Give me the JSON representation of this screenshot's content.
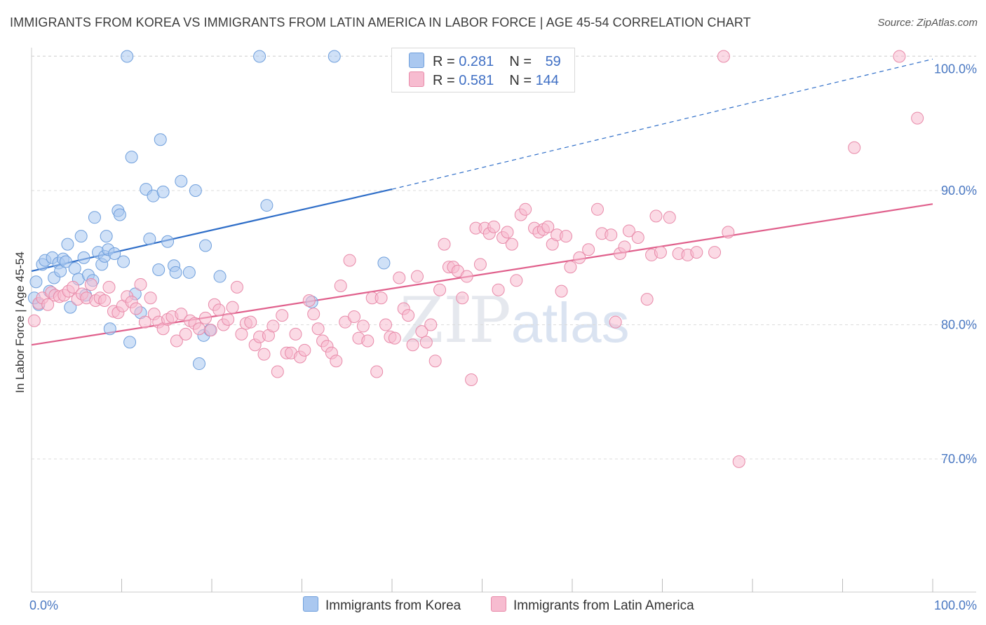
{
  "header": {
    "title": "IMMIGRANTS FROM KOREA VS IMMIGRANTS FROM LATIN AMERICA IN LABOR FORCE | AGE 45-54 CORRELATION CHART",
    "source": "Source: ZipAtlas.com"
  },
  "watermark": {
    "zip": "ZIP",
    "atlas": "atlas"
  },
  "legend": {
    "rows": [
      {
        "r_label": "R = ",
        "r_value": "0.281",
        "n_label": "N = ",
        "n_value": "59",
        "color": "#aac8f0"
      },
      {
        "r_label": "R = ",
        "r_value": "0.581",
        "n_label": "N = ",
        "n_value": "144",
        "color": "#f7bcd0"
      }
    ]
  },
  "bottom_legend": [
    {
      "label": "Immigrants from Korea",
      "color": "#aac8f0"
    },
    {
      "label": "Immigrants from Latin America",
      "color": "#f7bcd0"
    }
  ],
  "chart_data": {
    "type": "scatter",
    "title": "IMMIGRANTS FROM KOREA VS IMMIGRANTS FROM LATIN AMERICA IN LABOR FORCE | AGE 45-54 CORRELATION CHART",
    "xlabel": "",
    "ylabel": "In Labor Force | Age 45-54",
    "xlim": [
      0,
      100
    ],
    "ylim": [
      60,
      101.5
    ],
    "y_ticks": [
      {
        "value": 70,
        "label": "70.0%"
      },
      {
        "value": 80,
        "label": "80.0%"
      },
      {
        "value": 90,
        "label": "90.0%"
      },
      {
        "value": 100,
        "label": "100.0%"
      }
    ],
    "x_tick_labels": [
      {
        "value": 0,
        "label": "0.0%"
      },
      {
        "value": 100,
        "label": "100.0%"
      }
    ],
    "x_minor_ticks": [
      10,
      20,
      30,
      40,
      50,
      60,
      70,
      80,
      90,
      100
    ],
    "grid": true,
    "legend_position": "top-center",
    "series": [
      {
        "name": "Immigrants from Korea",
        "color": "#6f9fdc",
        "fill": "#aac8f0",
        "trend": {
          "x0": 0,
          "y0": 84.0,
          "x1": 40,
          "y1": 90.1,
          "dashed_to_x": 100,
          "dashed_to_y": 99.8,
          "color": "#2f6ec8"
        },
        "points": [
          [
            0.5,
            83.2
          ],
          [
            0.8,
            81.5
          ],
          [
            1.2,
            84.5
          ],
          [
            1.5,
            84.8
          ],
          [
            2.0,
            82.5
          ],
          [
            2.3,
            85.0
          ],
          [
            2.5,
            83.5
          ],
          [
            3.0,
            84.6
          ],
          [
            3.2,
            84.0
          ],
          [
            3.5,
            84.9
          ],
          [
            3.8,
            84.7
          ],
          [
            4.0,
            86.0
          ],
          [
            4.3,
            81.3
          ],
          [
            4.8,
            84.2
          ],
          [
            5.2,
            83.4
          ],
          [
            5.5,
            86.6
          ],
          [
            5.8,
            85.0
          ],
          [
            6.0,
            82.2
          ],
          [
            6.3,
            83.7
          ],
          [
            6.8,
            83.3
          ],
          [
            7.0,
            88.0
          ],
          [
            7.4,
            85.4
          ],
          [
            7.8,
            84.5
          ],
          [
            8.1,
            85.1
          ],
          [
            8.3,
            86.6
          ],
          [
            8.5,
            85.6
          ],
          [
            8.7,
            79.7
          ],
          [
            9.2,
            85.3
          ],
          [
            9.6,
            88.5
          ],
          [
            9.8,
            88.2
          ],
          [
            10.2,
            84.7
          ],
          [
            10.6,
            100.0
          ],
          [
            10.9,
            78.7
          ],
          [
            11.1,
            92.5
          ],
          [
            11.5,
            82.3
          ],
          [
            12.1,
            80.9
          ],
          [
            12.7,
            90.1
          ],
          [
            13.1,
            86.4
          ],
          [
            13.5,
            89.6
          ],
          [
            14.1,
            84.1
          ],
          [
            14.3,
            93.8
          ],
          [
            14.6,
            89.9
          ],
          [
            15.1,
            86.2
          ],
          [
            15.8,
            84.4
          ],
          [
            16.0,
            83.9
          ],
          [
            16.6,
            90.7
          ],
          [
            17.5,
            83.9
          ],
          [
            18.2,
            90.0
          ],
          [
            18.6,
            77.1
          ],
          [
            19.1,
            79.2
          ],
          [
            19.3,
            85.9
          ],
          [
            19.8,
            79.6
          ],
          [
            20.9,
            83.6
          ],
          [
            25.3,
            100.0
          ],
          [
            26.1,
            88.9
          ],
          [
            31.1,
            81.7
          ],
          [
            33.6,
            100.0
          ],
          [
            39.1,
            84.6
          ],
          [
            0.3,
            82.0
          ]
        ]
      },
      {
        "name": "Immigrants from Latin America",
        "color": "#e88aa9",
        "fill": "#f7bcd0",
        "trend": {
          "x0": 0,
          "y0": 78.5,
          "x1": 100,
          "y1": 89.0,
          "color": "#e0608c"
        },
        "points": [
          [
            0.3,
            80.3
          ],
          [
            0.8,
            81.6
          ],
          [
            1.2,
            82.0
          ],
          [
            1.8,
            81.5
          ],
          [
            2.2,
            82.4
          ],
          [
            2.6,
            82.2
          ],
          [
            3.1,
            82.1
          ],
          [
            3.6,
            82.2
          ],
          [
            4.1,
            82.5
          ],
          [
            4.6,
            82.8
          ],
          [
            5.1,
            81.9
          ],
          [
            5.6,
            82.3
          ],
          [
            6.1,
            82.0
          ],
          [
            6.6,
            83.0
          ],
          [
            7.1,
            81.8
          ],
          [
            7.6,
            82.0
          ],
          [
            8.1,
            81.8
          ],
          [
            8.6,
            82.8
          ],
          [
            9.1,
            81.0
          ],
          [
            9.6,
            80.9
          ],
          [
            10.1,
            81.4
          ],
          [
            10.6,
            82.1
          ],
          [
            11.1,
            81.7
          ],
          [
            11.6,
            81.2
          ],
          [
            12.1,
            83.0
          ],
          [
            12.6,
            80.2
          ],
          [
            13.2,
            82.0
          ],
          [
            13.6,
            80.8
          ],
          [
            14.1,
            80.2
          ],
          [
            14.6,
            79.7
          ],
          [
            15.1,
            80.4
          ],
          [
            15.6,
            80.6
          ],
          [
            16.1,
            78.8
          ],
          [
            16.6,
            80.8
          ],
          [
            17.1,
            79.3
          ],
          [
            17.6,
            80.3
          ],
          [
            18.1,
            80.1
          ],
          [
            18.6,
            79.7
          ],
          [
            19.3,
            80.5
          ],
          [
            19.9,
            79.6
          ],
          [
            20.3,
            81.5
          ],
          [
            20.8,
            81.1
          ],
          [
            21.3,
            80.0
          ],
          [
            21.8,
            80.4
          ],
          [
            22.3,
            81.3
          ],
          [
            22.8,
            82.8
          ],
          [
            23.3,
            79.3
          ],
          [
            23.8,
            80.1
          ],
          [
            24.3,
            80.2
          ],
          [
            24.8,
            78.5
          ],
          [
            25.3,
            79.1
          ],
          [
            25.8,
            77.8
          ],
          [
            26.3,
            79.2
          ],
          [
            26.8,
            79.9
          ],
          [
            27.3,
            76.5
          ],
          [
            27.8,
            80.7
          ],
          [
            28.3,
            77.9
          ],
          [
            28.8,
            77.9
          ],
          [
            29.3,
            79.3
          ],
          [
            29.8,
            77.6
          ],
          [
            30.3,
            78.1
          ],
          [
            30.8,
            81.8
          ],
          [
            31.3,
            80.8
          ],
          [
            31.8,
            79.7
          ],
          [
            32.3,
            78.8
          ],
          [
            32.8,
            78.4
          ],
          [
            33.3,
            77.9
          ],
          [
            33.8,
            77.3
          ],
          [
            34.3,
            82.9
          ],
          [
            34.8,
            80.2
          ],
          [
            35.3,
            84.8
          ],
          [
            35.8,
            80.6
          ],
          [
            36.3,
            79.0
          ],
          [
            36.8,
            79.9
          ],
          [
            37.3,
            78.8
          ],
          [
            37.8,
            82.0
          ],
          [
            38.3,
            76.5
          ],
          [
            38.8,
            82.0
          ],
          [
            39.3,
            80.0
          ],
          [
            39.8,
            79.1
          ],
          [
            40.3,
            79.0
          ],
          [
            40.8,
            83.5
          ],
          [
            41.3,
            81.2
          ],
          [
            41.8,
            80.7
          ],
          [
            42.3,
            78.5
          ],
          [
            42.8,
            83.6
          ],
          [
            43.3,
            79.5
          ],
          [
            43.8,
            78.7
          ],
          [
            44.3,
            80.0
          ],
          [
            44.8,
            77.3
          ],
          [
            45.3,
            82.6
          ],
          [
            45.8,
            86.0
          ],
          [
            46.3,
            84.3
          ],
          [
            46.8,
            84.3
          ],
          [
            47.3,
            84.0
          ],
          [
            47.8,
            82.0
          ],
          [
            48.3,
            83.6
          ],
          [
            48.8,
            75.9
          ],
          [
            49.3,
            87.2
          ],
          [
            49.8,
            84.5
          ],
          [
            50.3,
            87.2
          ],
          [
            50.8,
            86.8
          ],
          [
            51.3,
            87.3
          ],
          [
            51.8,
            82.6
          ],
          [
            52.3,
            86.5
          ],
          [
            52.8,
            86.9
          ],
          [
            53.3,
            86.0
          ],
          [
            53.8,
            83.3
          ],
          [
            54.3,
            88.2
          ],
          [
            54.8,
            88.6
          ],
          [
            55.8,
            87.2
          ],
          [
            56.3,
            86.9
          ],
          [
            56.8,
            87.1
          ],
          [
            57.3,
            87.3
          ],
          [
            57.8,
            86.0
          ],
          [
            58.3,
            86.7
          ],
          [
            58.8,
            82.5
          ],
          [
            59.3,
            86.6
          ],
          [
            59.8,
            84.3
          ],
          [
            60.8,
            85.0
          ],
          [
            61.8,
            85.6
          ],
          [
            62.8,
            88.6
          ],
          [
            63.3,
            86.8
          ],
          [
            64.3,
            86.7
          ],
          [
            64.8,
            80.2
          ],
          [
            65.3,
            85.3
          ],
          [
            65.8,
            85.8
          ],
          [
            66.3,
            87.0
          ],
          [
            67.3,
            86.5
          ],
          [
            68.3,
            81.9
          ],
          [
            68.8,
            85.2
          ],
          [
            69.3,
            88.1
          ],
          [
            69.8,
            85.4
          ],
          [
            70.8,
            88.0
          ],
          [
            71.8,
            85.3
          ],
          [
            72.8,
            85.2
          ],
          [
            73.8,
            85.4
          ],
          [
            76.8,
            100.0
          ],
          [
            78.5,
            69.8
          ],
          [
            91.3,
            93.2
          ],
          [
            96.3,
            100.0
          ],
          [
            98.3,
            95.4
          ],
          [
            75.8,
            85.4
          ],
          [
            77.3,
            86.9
          ]
        ]
      }
    ]
  }
}
